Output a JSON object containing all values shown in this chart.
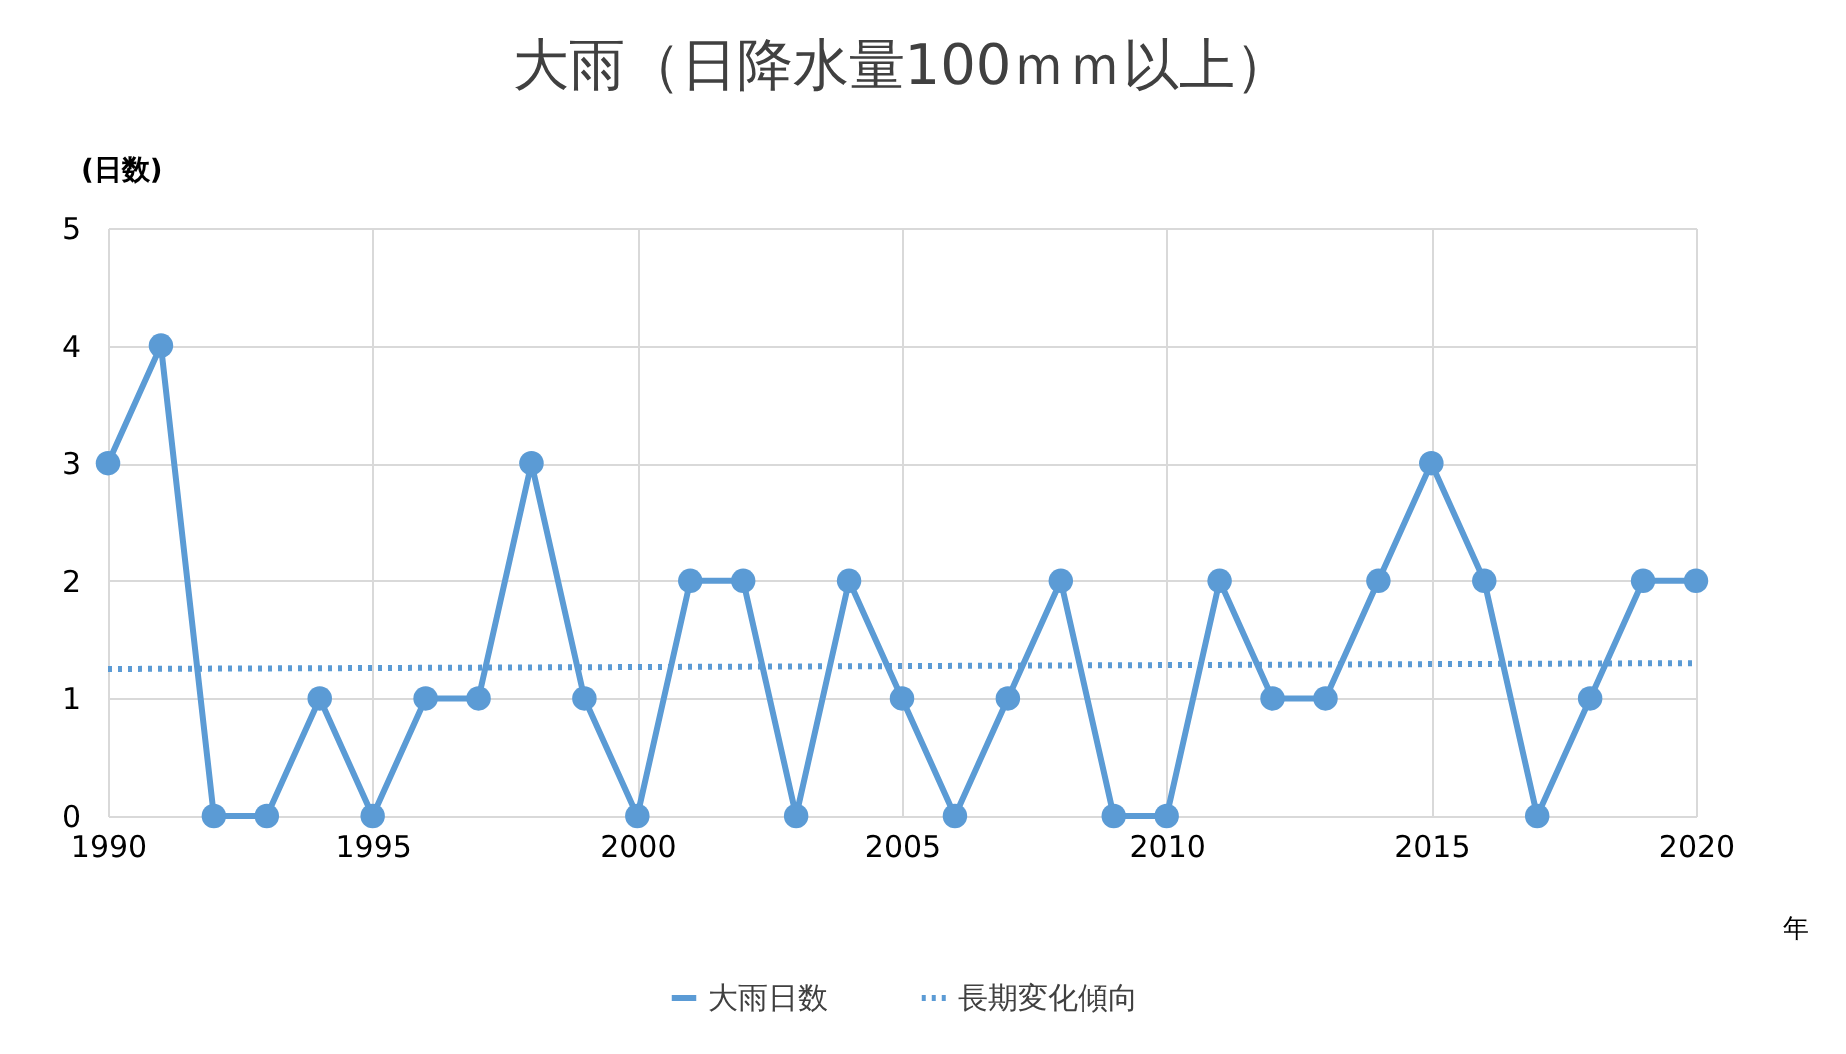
{
  "chart_data": {
    "type": "line",
    "title": "大雨（日降水量100ｍｍ以上）",
    "ylabel": "(日数)",
    "xlabel": "年",
    "x": [
      1990,
      1991,
      1992,
      1993,
      1994,
      1995,
      1996,
      1997,
      1998,
      1999,
      2000,
      2001,
      2002,
      2003,
      2004,
      2005,
      2006,
      2007,
      2008,
      2009,
      2010,
      2011,
      2012,
      2013,
      2014,
      2015,
      2016,
      2017,
      2018,
      2019,
      2020
    ],
    "series": [
      {
        "name": "大雨日数",
        "color": "#5b9bd5",
        "marker": "circle",
        "line_style": "solid",
        "values": [
          3,
          4,
          0,
          0,
          1,
          0,
          1,
          1,
          3,
          1,
          0,
          2,
          2,
          0,
          2,
          1,
          0,
          1,
          2,
          0,
          0,
          2,
          1,
          1,
          2,
          3,
          2,
          0,
          1,
          2,
          2
        ]
      },
      {
        "name": "長期変化傾向",
        "color": "#5b9bd5",
        "marker": "none",
        "line_style": "dotted",
        "x": [
          1990,
          2020
        ],
        "values": [
          1.25,
          1.3
        ]
      }
    ],
    "xlim": [
      1990,
      2020
    ],
    "xticks": [
      1990,
      1995,
      2000,
      2005,
      2010,
      2015,
      2020
    ],
    "ylim": [
      0,
      5
    ],
    "yticks": [
      0,
      1,
      2,
      3,
      4,
      5
    ],
    "grid": true,
    "legend": "bottom"
  }
}
